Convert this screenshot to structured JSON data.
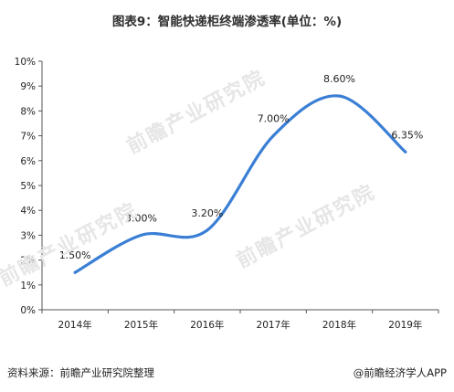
{
  "footer": {
    "source": "资料来源：前瞻产业研究院整理",
    "brand": "@前瞻经济学人APP"
  },
  "watermark": "前瞻产业研究院",
  "chart_data": {
    "type": "line",
    "title": "图表9：智能快递柜终端渗透率(单位：%)",
    "xlabel": "",
    "ylabel": "",
    "categories": [
      "2014年",
      "2015年",
      "2016年",
      "2017年",
      "2018年",
      "2019年"
    ],
    "series": [
      {
        "values": [
          1.5,
          3.0,
          3.2,
          7.0,
          8.6,
          6.35
        ],
        "labels": [
          "1.50%",
          "3.00%",
          "3.20%",
          "7.00%",
          "8.60%",
          "6.35%"
        ],
        "color": "#3a7fd5"
      }
    ],
    "ylim": [
      0,
      10
    ],
    "yticks": [
      "0%",
      "1%",
      "2%",
      "3%",
      "4%",
      "5%",
      "6%",
      "7%",
      "8%",
      "9%",
      "10%"
    ],
    "grid": false,
    "legend": "none"
  }
}
